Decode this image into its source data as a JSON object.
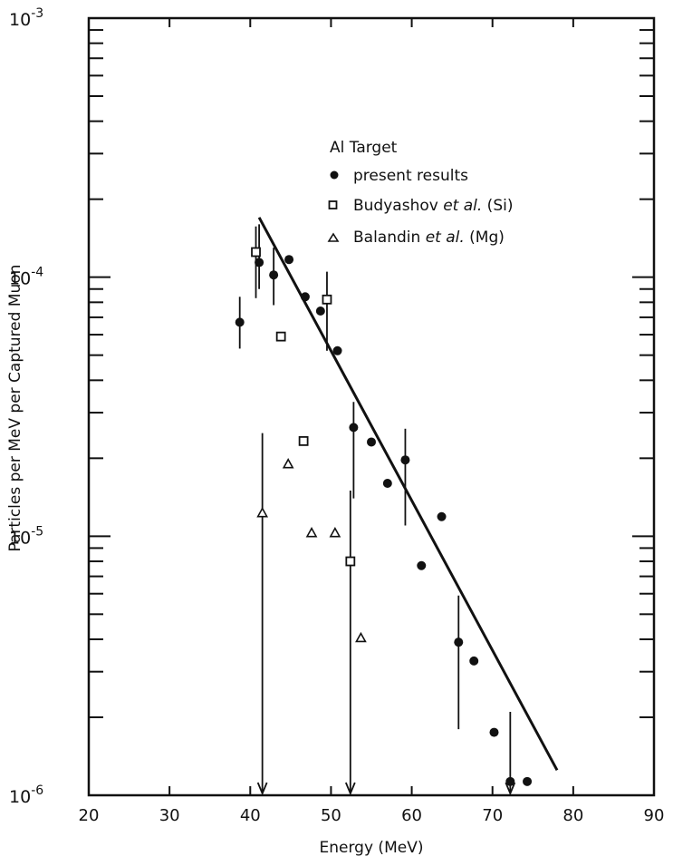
{
  "chart_data": {
    "type": "scatter",
    "title": "",
    "xlabel": "Energy (MeV)",
    "ylabel": "Particles per MeV per Captured Muon",
    "xlim": [
      20,
      90
    ],
    "ylim": [
      1e-06,
      0.001
    ],
    "yscale": "log",
    "grid": false,
    "xticks": [
      "20",
      "30",
      "40",
      "50",
      "60",
      "70",
      "80",
      "90"
    ],
    "yticks": [
      {
        "base": "10",
        "exp": "-3",
        "value": 0.001
      },
      {
        "base": "10",
        "exp": "-4",
        "value": 0.0001
      },
      {
        "base": "10",
        "exp": "-5",
        "value": 1e-05
      },
      {
        "base": "10",
        "exp": "-6",
        "value": 1e-06
      }
    ],
    "legend": {
      "title": "Al Target",
      "placement": "top-right",
      "entries": [
        {
          "marker": "filled-circle",
          "label": "present results"
        },
        {
          "marker": "open-square",
          "label_parts": [
            "Budyashov ",
            "et al.",
            " (Si)"
          ]
        },
        {
          "marker": "open-triangle",
          "label_parts": [
            "Balandin ",
            "et al.",
            " (Mg)"
          ]
        }
      ]
    },
    "series": [
      {
        "marker": "filled-circle",
        "points": [
          {
            "x": 38.7,
            "y": 6.7e-05,
            "err": [
              5.3e-05,
              8.4e-05
            ]
          },
          {
            "x": 41.1,
            "y": 0.000114,
            "err": [
              9e-05,
              0.00016
            ]
          },
          {
            "x": 42.9,
            "y": 0.000102,
            "err": [
              7.8e-05,
              0.00013
            ]
          },
          {
            "x": 44.8,
            "y": 0.000117
          },
          {
            "x": 46.8,
            "y": 8.4e-05
          },
          {
            "x": 48.7,
            "y": 7.4e-05
          },
          {
            "x": 50.8,
            "y": 5.2e-05
          },
          {
            "x": 52.8,
            "y": 2.63e-05,
            "err": [
              1.4e-05,
              3.3e-05
            ]
          },
          {
            "x": 55.0,
            "y": 2.31e-05
          },
          {
            "x": 57.0,
            "y": 1.6e-05
          },
          {
            "x": 59.2,
            "y": 1.97e-05,
            "err": [
              1.1e-05,
              2.6e-05
            ]
          },
          {
            "x": 61.2,
            "y": 7.7e-06
          },
          {
            "x": 63.7,
            "y": 1.19e-05
          },
          {
            "x": 65.8,
            "y": 3.9e-06,
            "err": [
              1.8e-06,
              5.9e-06
            ]
          },
          {
            "x": 67.7,
            "y": 3.3e-06
          },
          {
            "x": 70.2,
            "y": 1.75e-06
          },
          {
            "x": 72.2,
            "y": 1.13e-06,
            "err": [
              1e-06,
              2.1e-06
            ],
            "upper_limit": true
          },
          {
            "x": 74.3,
            "y": 1.13e-06
          }
        ]
      },
      {
        "marker": "open-square",
        "points": [
          {
            "x": 40.7,
            "y": 0.000125,
            "err": [
              8.3e-05,
              0.000157
            ]
          },
          {
            "x": 43.8,
            "y": 5.9e-05
          },
          {
            "x": 49.5,
            "y": 8.2e-05,
            "err": [
              5.2e-05,
              0.000105
            ]
          },
          {
            "x": 46.6,
            "y": 2.33e-05
          },
          {
            "x": 52.4,
            "y": 8e-06,
            "err": [
              1e-06,
              1.5e-05
            ],
            "upper_limit": true
          }
        ]
      },
      {
        "marker": "open-triangle",
        "points": [
          {
            "x": 41.5,
            "y": 1.23e-05,
            "err": [
              1e-06,
              2.5e-05
            ],
            "upper_limit": true
          },
          {
            "x": 44.7,
            "y": 1.9e-05
          },
          {
            "x": 47.6,
            "y": 1.03e-05
          },
          {
            "x": 50.5,
            "y": 1.03e-05
          },
          {
            "x": 53.7,
            "y": 4.05e-06
          }
        ]
      }
    ],
    "fit_line": {
      "x": [
        41.1,
        78.0
      ],
      "y": [
        0.00017,
        1.25e-06
      ]
    }
  }
}
